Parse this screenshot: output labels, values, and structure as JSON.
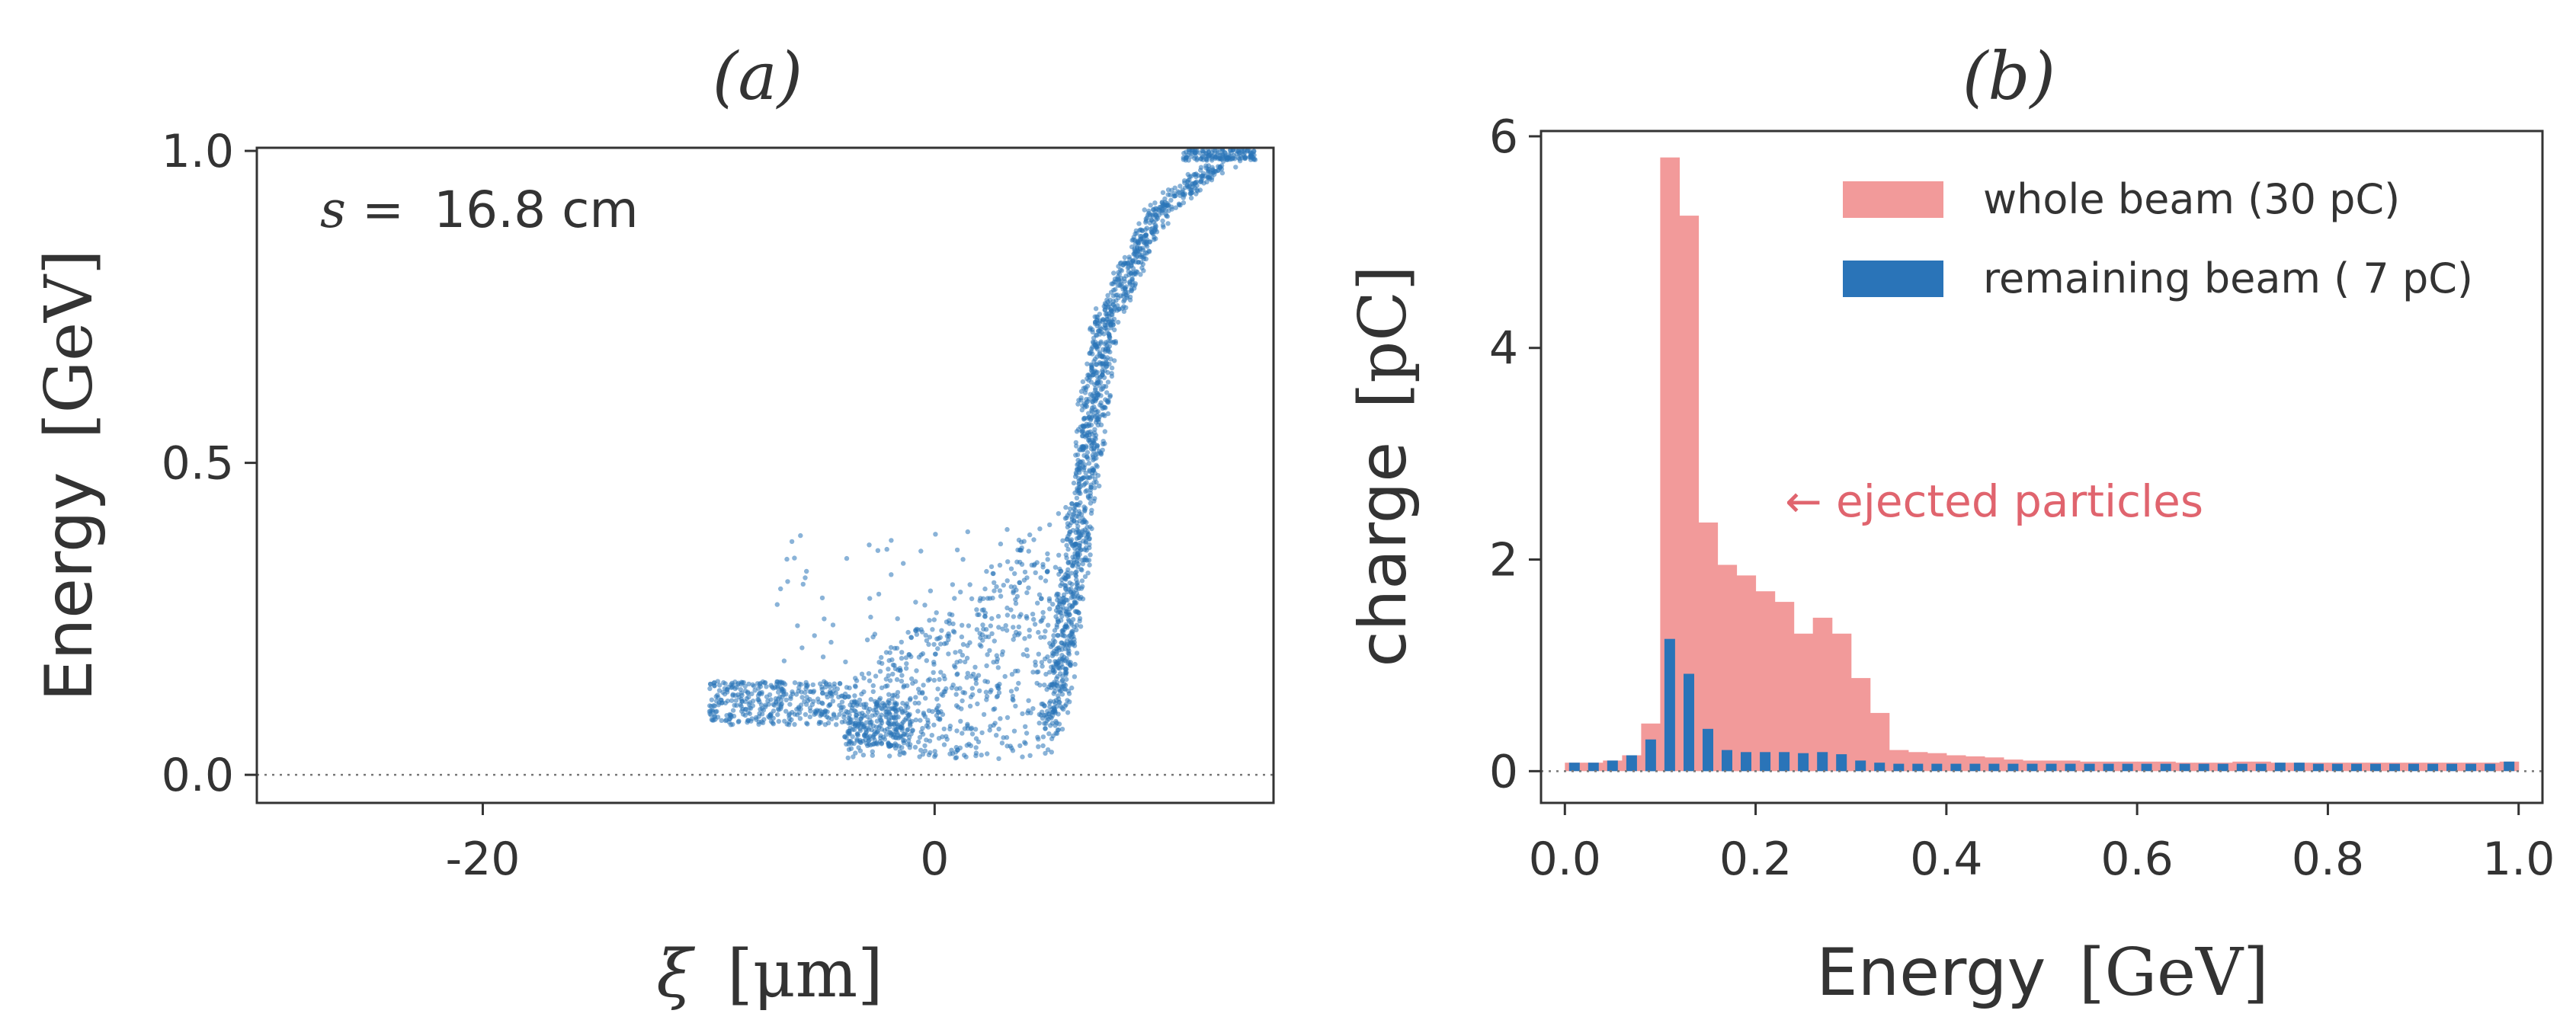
{
  "chart_data": [
    {
      "type": "scatter",
      "panel_label": "(a)",
      "xlabel_prefix": "ξ",
      "xlabel_unit": "[μm]",
      "ylabel_prefix": "Energy",
      "ylabel_unit": "[GeV]",
      "xlim": [
        -30,
        15
      ],
      "ylim": [
        -0.045,
        1.005
      ],
      "xticks": [
        -20,
        0
      ],
      "xtick_labels": [
        "-20",
        "0"
      ],
      "yticks": [
        0.0,
        0.5,
        1.0
      ],
      "ytick_labels": [
        "0.0",
        "0.5",
        "1.0"
      ],
      "annotation_prefix": "s =",
      "annotation_value": "16.8 cm",
      "point_color": "#2a74b8",
      "reference_line_y": 0,
      "series_description": [
        {
          "name": "main ridge",
          "x_range": [
            4.5,
            14
          ],
          "y_range": [
            0.05,
            1.0
          ]
        },
        {
          "name": "low-energy tail",
          "x_range": [
            -10,
            5
          ],
          "y_range": [
            0.02,
            0.42
          ]
        }
      ]
    },
    {
      "type": "bar",
      "panel_label": "(b)",
      "xlabel_prefix": "Energy",
      "xlabel_unit": "[GeV]",
      "ylabel_prefix": "charge",
      "ylabel_unit": "[pC]",
      "xlim": [
        -0.025,
        1.025
      ],
      "ylim": [
        -0.3,
        6.05
      ],
      "xticks": [
        0.0,
        0.2,
        0.4,
        0.6,
        0.8,
        1.0
      ],
      "xtick_labels": [
        "0.0",
        "0.2",
        "0.4",
        "0.6",
        "0.8",
        "1.0"
      ],
      "yticks": [
        0,
        2,
        4,
        6
      ],
      "ytick_labels": [
        "0",
        "2",
        "4",
        "6"
      ],
      "bin_width": 0.02,
      "bin_start": 0.01,
      "annotation": "← ejected particles",
      "annotation_color": "#e0646e",
      "reference_line_y": 0,
      "series": [
        {
          "name": "whole beam (30 pC)",
          "color": "#f29a9a",
          "values": [
            0.08,
            0.08,
            0.1,
            0.15,
            0.45,
            5.8,
            5.25,
            2.35,
            1.95,
            1.85,
            1.7,
            1.6,
            1.3,
            1.45,
            1.3,
            0.88,
            0.55,
            0.2,
            0.18,
            0.17,
            0.15,
            0.14,
            0.13,
            0.11,
            0.1,
            0.1,
            0.1,
            0.09,
            0.09,
            0.09,
            0.09,
            0.09,
            0.08,
            0.08,
            0.08,
            0.09,
            0.09,
            0.08,
            0.08,
            0.08,
            0.08,
            0.08,
            0.08,
            0.08,
            0.08,
            0.08,
            0.08,
            0.08,
            0.08,
            0.09
          ]
        },
        {
          "name": "remaining beam ( 7 pC)",
          "color": "#2a74b8",
          "values": [
            0.08,
            0.08,
            0.1,
            0.15,
            0.3,
            1.25,
            0.92,
            0.4,
            0.2,
            0.18,
            0.18,
            0.18,
            0.17,
            0.18,
            0.16,
            0.1,
            0.08,
            0.07,
            0.07,
            0.07,
            0.07,
            0.07,
            0.07,
            0.07,
            0.07,
            0.07,
            0.07,
            0.07,
            0.07,
            0.07,
            0.07,
            0.07,
            0.07,
            0.07,
            0.07,
            0.07,
            0.07,
            0.08,
            0.08,
            0.07,
            0.07,
            0.07,
            0.07,
            0.07,
            0.07,
            0.07,
            0.07,
            0.07,
            0.07,
            0.09
          ]
        }
      ]
    }
  ]
}
